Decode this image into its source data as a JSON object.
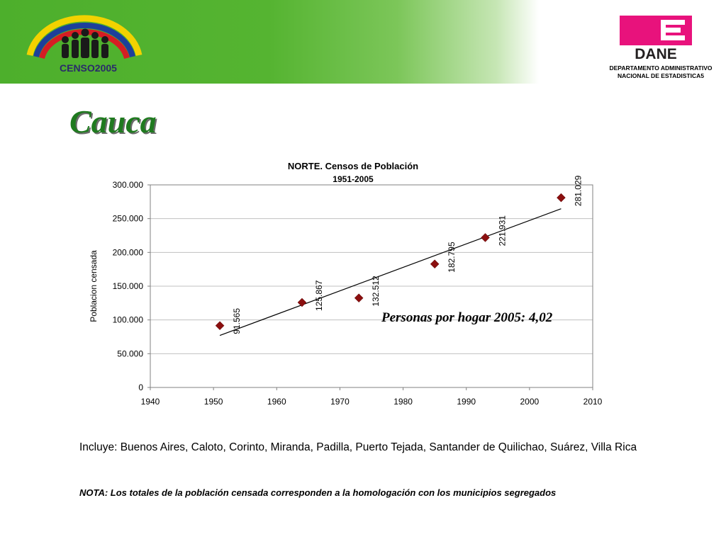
{
  "header": {
    "censo_logo_text": "CENSO2005",
    "dane_logo_text": "DANE",
    "dane_caption_line1": "DEPARTAMENTO ADMINISTRATIVO",
    "dane_caption_line2": "NACIONAL DE ESTADISTICA5"
  },
  "slide": {
    "title": "Cauca",
    "includes": "Incluye: Buenos Aires, Caloto, Corinto, Miranda, Padilla, Puerto Tejada, Santander de Quilichao, Suárez, Villa Rica",
    "note": "NOTA: Los totales de la población censada corresponden a la homologación con los municipios segregados"
  },
  "chart_data": {
    "type": "scatter",
    "title": "NORTE. Censos de Población",
    "subtitle": "1951-2005",
    "xlabel": "",
    "ylabel": "Poblacion censada",
    "xlim": [
      1940,
      2010
    ],
    "ylim": [
      0,
      300000
    ],
    "x_ticks": [
      1940,
      1950,
      1960,
      1970,
      1980,
      1990,
      2000,
      2010
    ],
    "x_tick_labels": [
      "1940",
      "1950",
      "1960",
      "1970",
      "1980",
      "1990",
      "2000",
      "2010"
    ],
    "y_ticks": [
      0,
      50000,
      100000,
      150000,
      200000,
      250000,
      300000
    ],
    "y_tick_labels": [
      "0",
      "50.000",
      "100.000",
      "150.000",
      "200.000",
      "250.000",
      "300.000"
    ],
    "grid": "horizontal",
    "series": [
      {
        "x": [
          1951,
          1964,
          1973,
          1985,
          1993,
          2005
        ],
        "values": [
          91565,
          125867,
          132512,
          182795,
          221931,
          281029
        ],
        "labels": [
          "91.565",
          "125.867",
          "132.512",
          "182.795",
          "221.931",
          "281.029"
        ],
        "color": "#8b0f0f"
      }
    ],
    "trendline": {
      "type": "linear",
      "color": "#000000"
    },
    "annotation": "Personas por hogar 2005: 4,02"
  }
}
